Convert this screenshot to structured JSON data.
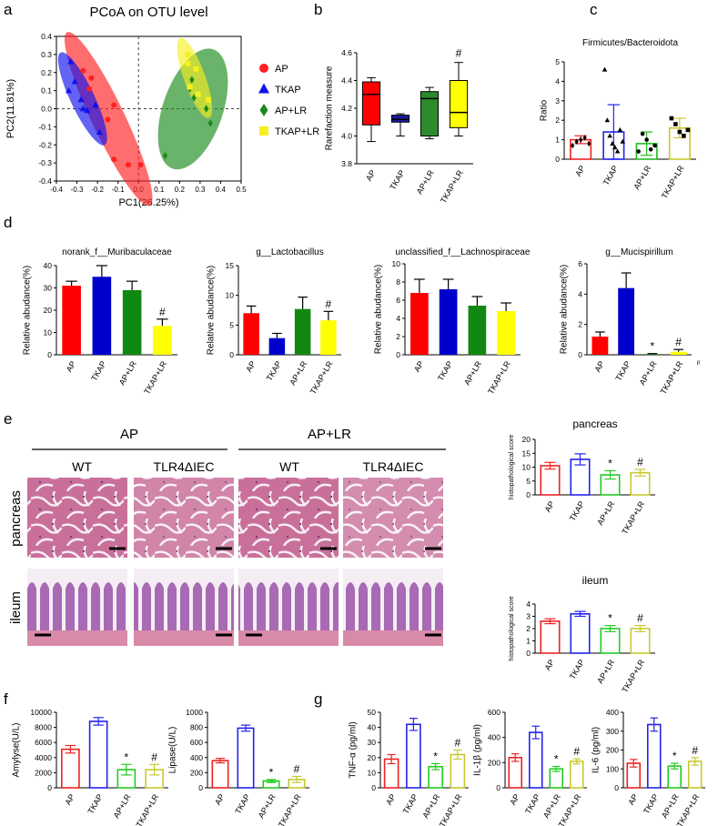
{
  "chart_data": [
    {
      "type": "scatter",
      "panel": "a",
      "title": "PCoA on OTU level",
      "xlabel": "PC1(26.25%)",
      "ylabel": "PC2(11.81%)",
      "xlim": [
        -0.4,
        0.5
      ],
      "ylim": [
        -0.4,
        0.4
      ],
      "xticks": [
        -0.4,
        -0.3,
        -0.2,
        -0.1,
        {
          "value": 0,
          "label": "0.0"
        },
        0.1,
        0.2,
        0.3,
        0.4,
        0.5
      ],
      "yticks": [
        -0.4,
        -0.3,
        -0.2,
        -0.1,
        {
          "value": 0,
          "label": "0.0"
        },
        0.1,
        0.2,
        0.3,
        0.4
      ],
      "zero_lines": true,
      "series": [
        {
          "name": "AP",
          "color": "#ff2020",
          "marker": "circle",
          "x": [
            -0.27,
            -0.23,
            -0.24,
            -0.12,
            -0.15,
            -0.12,
            -0.05,
            0.01
          ],
          "y": [
            0.21,
            0.17,
            0.11,
            0.02,
            -0.06,
            -0.28,
            -0.31,
            -0.31
          ]
        },
        {
          "name": "TKAP",
          "color": "#1010ee",
          "marker": "triangle",
          "x": [
            -0.33,
            -0.34,
            -0.31,
            -0.27,
            -0.25,
            -0.28,
            -0.21,
            -0.19
          ],
          "y": [
            0.26,
            0.1,
            0.15,
            0.0,
            -0.01,
            0.05,
            0.02,
            -0.13
          ]
        },
        {
          "name": "AP+LR",
          "color": "#1a8a1a",
          "marker": "diamond",
          "x": [
            0.13,
            0.25,
            0.27,
            0.33,
            0.35,
            0.26
          ],
          "y": [
            -0.26,
            0.11,
            0.06,
            0.0,
            -0.08,
            0.16
          ]
        },
        {
          "name": "TKAP+LR",
          "color": "#f5f020",
          "marker": "square",
          "x": [
            0.24,
            0.24,
            0.28,
            0.29,
            0.25,
            0.34
          ],
          "y": [
            0.3,
            0.25,
            0.22,
            0.08,
            0.12,
            0.05
          ]
        }
      ]
    },
    {
      "type": "box",
      "panel": "b",
      "ylabel": "Rarefaction measure",
      "categories": [
        "AP",
        "TKAP",
        "AP+LR",
        "TKAP+LR"
      ],
      "ylim": [
        3.8,
        4.6
      ],
      "yticks": [
        3.8,
        {
          "value": 4,
          "label": "4.0"
        },
        4.2,
        4.4,
        4.6
      ],
      "colors": [
        "#ff0000",
        "#1a1aa0",
        "#2d8a2d",
        "#ffff00"
      ],
      "boxes": [
        {
          "min": 3.96,
          "q1": 4.08,
          "median": 4.3,
          "q3": 4.39,
          "max": 4.42
        },
        {
          "min": 4.0,
          "q1": 4.1,
          "median": 4.12,
          "q3": 4.15,
          "max": 4.16
        },
        {
          "min": 3.98,
          "q1": 4.0,
          "median": 4.27,
          "q3": 4.32,
          "max": 4.35
        },
        {
          "min": 4.0,
          "q1": 4.06,
          "median": 4.17,
          "q3": 4.4,
          "max": 4.53
        }
      ],
      "annotations": [
        null,
        null,
        null,
        "#"
      ]
    },
    {
      "type": "bar",
      "panel": "c",
      "title": "Firmicutes/Bacteroidota",
      "ylabel": "Ratio",
      "categories": [
        "AP",
        "TKAP",
        "AP+LR",
        "TKAP+LR"
      ],
      "ylim": [
        0,
        5
      ],
      "yticks": [
        0,
        1,
        2,
        3,
        4,
        5
      ],
      "filled": false,
      "colors": [
        "#ee2222",
        "#2222ee",
        "#22bb22",
        "#c8c830"
      ],
      "values": [
        1.0,
        1.4,
        0.8,
        1.6
      ],
      "errors": [
        0.2,
        1.4,
        0.6,
        0.5
      ],
      "markers": [
        "diamond",
        "triangle",
        "circle",
        "square"
      ],
      "points": [
        [
          0.7,
          0.9,
          1.0,
          1.1,
          0.8
        ],
        [
          4.6,
          2.0,
          1.2,
          0.8,
          0.6,
          0.4,
          1.5,
          0.9
        ],
        [
          0.4,
          1.3,
          1.0,
          0.5,
          0.7
        ],
        [
          2.1,
          1.8,
          1.4,
          1.2,
          1.5
        ]
      ]
    },
    {
      "type": "bar",
      "panel": "d",
      "title": "norank_f__Muribaculaceae",
      "ylabel": "Relative abudance(%)",
      "categories": [
        "AP",
        "TKAP",
        "AP+LR",
        "TKAP+LR"
      ],
      "ylim": [
        0,
        40
      ],
      "yticks": [
        0,
        10,
        20,
        30,
        40
      ],
      "filled": true,
      "colors": [
        "#ff0000",
        "#0000cc",
        "#118811",
        "#ffff00"
      ],
      "values": [
        31,
        35,
        29,
        13
      ],
      "errors": [
        2,
        5,
        4,
        3
      ],
      "annotations": [
        null,
        null,
        null,
        "#"
      ]
    },
    {
      "type": "bar",
      "title": "g__Lactobacillus",
      "ylabel": "Relative abudance(%)",
      "categories": [
        "AP",
        "TKAP",
        "AP+LR",
        "TKAP+LR"
      ],
      "ylim": [
        0,
        15
      ],
      "yticks": [
        0,
        5,
        10,
        15
      ],
      "filled": true,
      "colors": [
        "#ff0000",
        "#0000cc",
        "#118811",
        "#ffff00"
      ],
      "values": [
        7,
        2.8,
        7.7,
        5.8
      ],
      "errors": [
        1.2,
        0.8,
        2,
        1.5
      ],
      "annotations": [
        null,
        null,
        null,
        "#"
      ]
    },
    {
      "type": "bar",
      "title": "unclassified_f__Lachnospiraceae",
      "ylabel": "Relative abudance(%)",
      "categories": [
        "AP",
        "TKAP",
        "AP+LR",
        "TKAP+LR"
      ],
      "ylim": [
        0,
        10
      ],
      "yticks": [
        0,
        2,
        4,
        6,
        8,
        10
      ],
      "filled": true,
      "colors": [
        "#ff0000",
        "#0000cc",
        "#118811",
        "#ffff00"
      ],
      "values": [
        6.8,
        7.2,
        5.4,
        4.8
      ],
      "errors": [
        1.5,
        1.1,
        1,
        0.9
      ]
    },
    {
      "type": "bar",
      "title": "g__Mucispirillum",
      "ylabel": "Relative abudance(%)",
      "categories": [
        "AP",
        "TKAP",
        "AP+LR",
        "TKAP+LR"
      ],
      "ylim": [
        0,
        6
      ],
      "yticks": [
        0,
        2,
        4,
        6
      ],
      "filled": true,
      "colors": [
        "#ff0000",
        "#0000cc",
        "#118811",
        "#ffff00"
      ],
      "values": [
        1.2,
        4.4,
        0.05,
        0.2
      ],
      "errors": [
        0.3,
        1.0,
        0.03,
        0.15
      ],
      "annotations": [
        null,
        null,
        "*",
        "#"
      ],
      "note": "p"
    },
    {
      "type": "bar",
      "title": "pancreas",
      "ylabel": "histopathological score",
      "categories": [
        "AP",
        "TKAP",
        "AP+LR",
        "TKAP+LR"
      ],
      "ylim": [
        0,
        20
      ],
      "yticks": [
        0,
        5,
        10,
        15,
        20
      ],
      "filled": false,
      "colors": [
        "#ee2222",
        "#2222ee",
        "#22cc22",
        "#c8c830"
      ],
      "values": [
        10.5,
        12.8,
        7.2,
        8
      ],
      "errors": [
        1.2,
        2,
        1.5,
        1.2
      ],
      "annotations": [
        null,
        null,
        "*",
        "#"
      ]
    },
    {
      "type": "bar",
      "title": "ileum",
      "ylabel": "histopathological score",
      "categories": [
        "AP",
        "TKAP",
        "AP+LR",
        "TKAP+LR"
      ],
      "ylim": [
        0,
        4
      ],
      "yticks": [
        0,
        1,
        2,
        3,
        4
      ],
      "filled": false,
      "colors": [
        "#ee2222",
        "#2222ee",
        "#22cc22",
        "#c8c830"
      ],
      "values": [
        2.6,
        3.2,
        2,
        2
      ],
      "errors": [
        0.2,
        0.2,
        0.25,
        0.25
      ],
      "annotations": [
        null,
        null,
        "*",
        "#"
      ]
    },
    {
      "type": "bar",
      "panel": "f",
      "ylabel": "Amylyse(U/L)",
      "categories": [
        "AP",
        "TKAP",
        "AP+LR",
        "TKAP+LR"
      ],
      "ylim": [
        0,
        10000
      ],
      "yticks": [
        0,
        2000,
        4000,
        6000,
        8000,
        10000
      ],
      "filled": false,
      "colors": [
        "#ee2222",
        "#2222ee",
        "#22cc22",
        "#c8c830"
      ],
      "values": [
        5100,
        8800,
        2400,
        2400
      ],
      "errors": [
        500,
        500,
        700,
        700
      ],
      "annotations": [
        null,
        null,
        "*",
        "#"
      ]
    },
    {
      "type": "bar",
      "ylabel": "Lipase(U/L)",
      "categories": [
        "AP",
        "TKAP",
        "AP+LR",
        "TKAP+LR"
      ],
      "ylim": [
        0,
        1000
      ],
      "yticks": [
        0,
        200,
        400,
        600,
        800,
        1000
      ],
      "filled": false,
      "colors": [
        "#ee2222",
        "#2222ee",
        "#22cc22",
        "#c8c830"
      ],
      "values": [
        360,
        790,
        90,
        110
      ],
      "errors": [
        30,
        40,
        20,
        40
      ],
      "annotations": [
        null,
        null,
        "*",
        "#"
      ]
    },
    {
      "type": "bar",
      "panel": "g",
      "ylabel": "TNF-α (pg/ml)",
      "categories": [
        "AP",
        "TKAP",
        "AP+LR",
        "TKAP+LR"
      ],
      "ylim": [
        0,
        50
      ],
      "yticks": [
        0,
        10,
        20,
        30,
        40,
        50
      ],
      "filled": false,
      "colors": [
        "#ee2222",
        "#2222ee",
        "#22cc22",
        "#c8c830"
      ],
      "values": [
        19,
        42,
        14,
        22
      ],
      "errors": [
        3,
        4,
        2,
        3
      ],
      "annotations": [
        null,
        null,
        "*",
        "#"
      ]
    },
    {
      "type": "bar",
      "ylabel": "IL-1β (pg/ml)",
      "categories": [
        "AP",
        "TKAP",
        "AP+LR",
        "TKAP+LR"
      ],
      "ylim": [
        0,
        600
      ],
      "yticks": [
        0,
        200,
        400,
        600
      ],
      "filled": false,
      "colors": [
        "#ee2222",
        "#2222ee",
        "#22cc22",
        "#c8c830"
      ],
      "values": [
        240,
        440,
        150,
        210
      ],
      "errors": [
        30,
        50,
        20,
        20
      ],
      "annotations": [
        null,
        null,
        "*",
        "#"
      ]
    },
    {
      "type": "bar",
      "ylabel": "IL-6 (pg/ml)",
      "categories": [
        "AP",
        "TKAP",
        "AP+LR",
        "TKAP+LR"
      ],
      "ylim": [
        0,
        400
      ],
      "yticks": [
        0,
        100,
        200,
        300,
        400
      ],
      "filled": false,
      "colors": [
        "#ee2222",
        "#2222ee",
        "#22cc22",
        "#c8c830"
      ],
      "values": [
        130,
        335,
        115,
        140
      ],
      "errors": [
        20,
        35,
        15,
        20
      ],
      "annotations": [
        null,
        null,
        "*",
        "#"
      ]
    }
  ],
  "histology": {
    "panel": "e",
    "groups": [
      "AP",
      "AP+LR"
    ],
    "genotypes": [
      "WT",
      "TLR4ΔIEC",
      "WT",
      "TLR4ΔIEC"
    ],
    "tissues": [
      "pancreas",
      "ileum"
    ]
  }
}
